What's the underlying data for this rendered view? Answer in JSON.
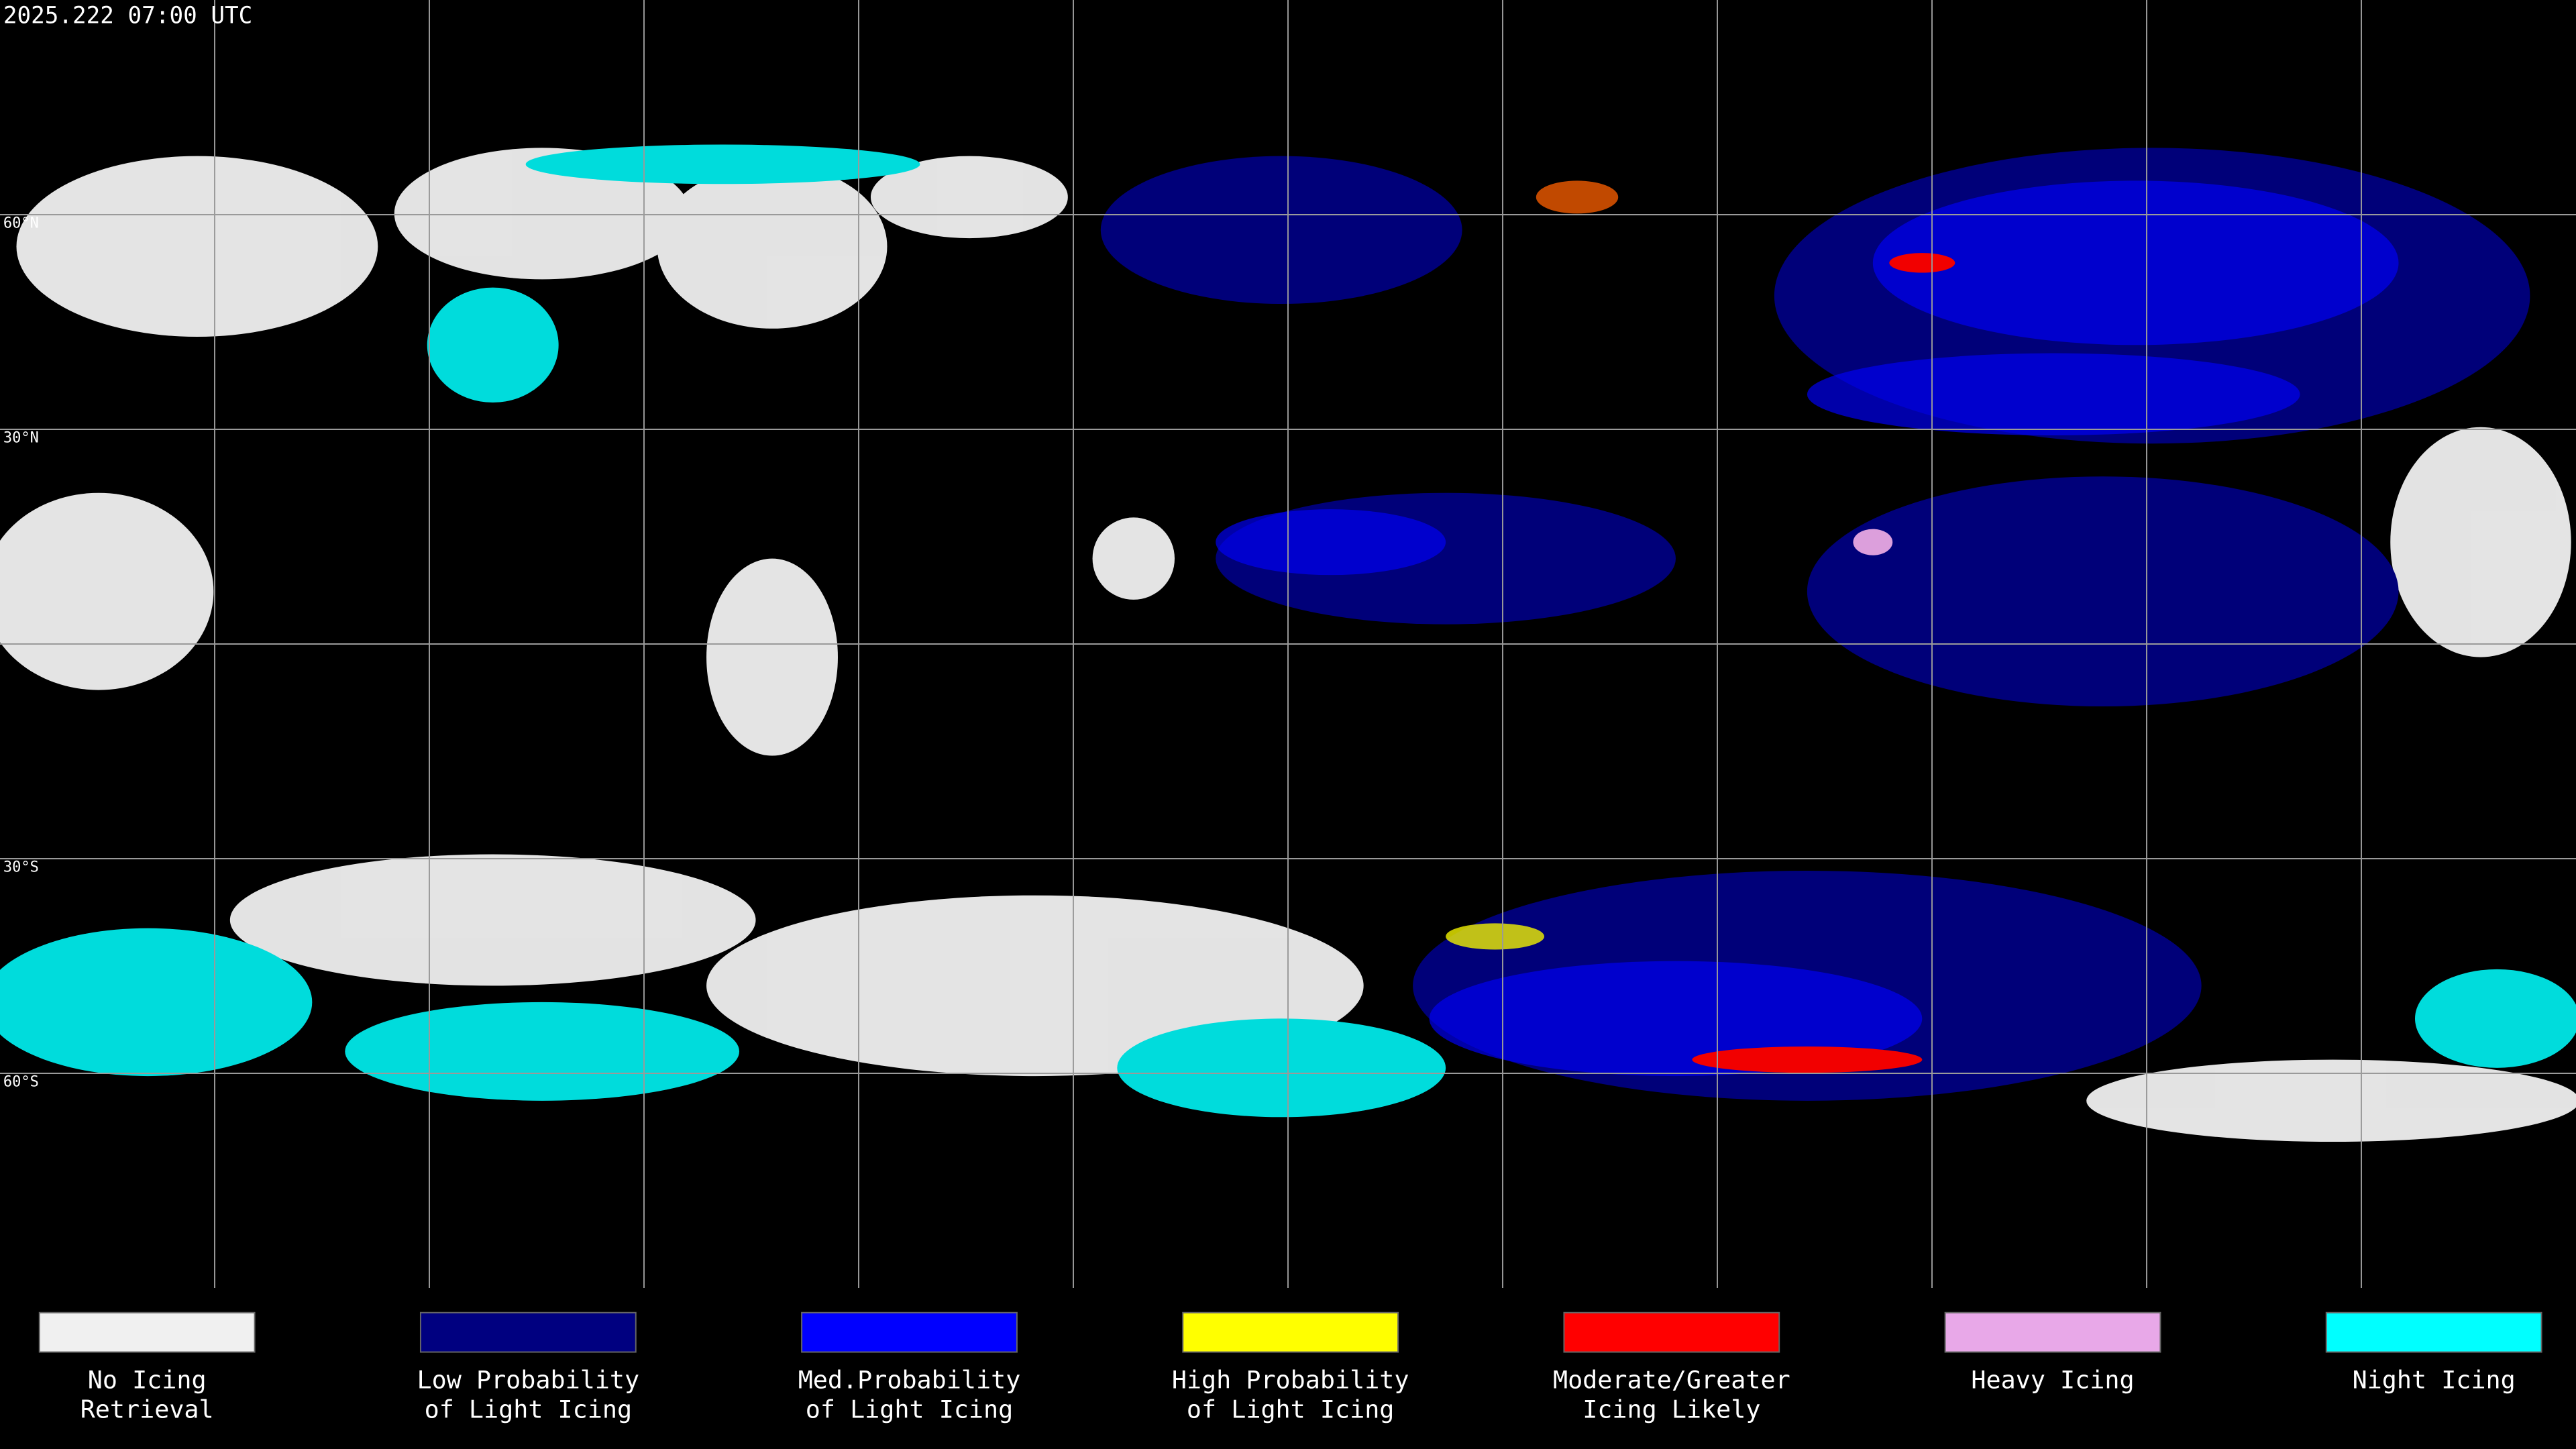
{
  "header": {
    "timestamp": "2025.222 07:00 UTC"
  },
  "map": {
    "latitude_labels": [
      "60°N",
      "30°N",
      "30°S",
      "60°S"
    ]
  },
  "legend": [
    {
      "color": "#f0f0f0",
      "label": [
        "No Icing",
        "Retrieval"
      ]
    },
    {
      "color": "#000080",
      "label": [
        "Low Probability",
        "of Light Icing"
      ]
    },
    {
      "color": "#0000ff",
      "label": [
        "Med.Probability",
        "of Light Icing"
      ]
    },
    {
      "color": "#ffff00",
      "label": [
        "High Probability",
        "of Light Icing"
      ]
    },
    {
      "color": "#ff0000",
      "label": [
        "Moderate/Greater",
        "Icing Likely"
      ]
    },
    {
      "color": "#e8a8e8",
      "label": [
        "Heavy Icing",
        ""
      ]
    },
    {
      "color": "#00ffff",
      "label": [
        "Night Icing",
        ""
      ]
    }
  ]
}
